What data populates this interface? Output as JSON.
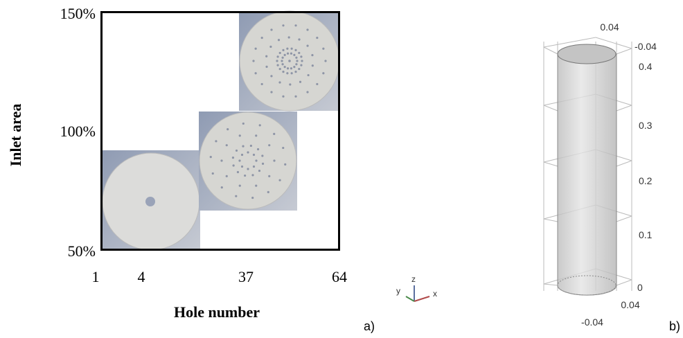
{
  "panel_a": {
    "y_axis_title": "Inlet area",
    "y_ticks": [
      "150%",
      "100%",
      "50%"
    ],
    "x_ticks": [
      "1",
      "4",
      "37",
      "64"
    ],
    "x_axis_title": "Hole number",
    "label": "a)"
  },
  "axis_triad": {
    "y": "y",
    "z": "z",
    "x": "x"
  },
  "panel_b": {
    "top_labels": [
      "0.04",
      "-0.04"
    ],
    "height_ticks": [
      "0.4",
      "0.3",
      "0.2",
      "0.1",
      "0"
    ],
    "bottom_labels": [
      "0.04",
      "-0.04"
    ],
    "label": "b)"
  }
}
